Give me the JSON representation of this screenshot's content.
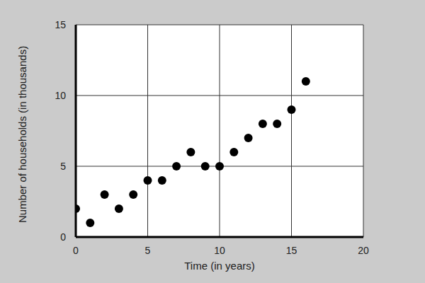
{
  "chart_data": {
    "type": "scatter",
    "xlabel": "Time (in years)",
    "ylabel": "Number of households (in thousands)",
    "x": [
      0,
      1,
      2,
      3,
      4,
      5,
      6,
      7,
      8,
      9,
      10,
      11,
      12,
      13,
      14,
      15,
      16
    ],
    "values": [
      2,
      1,
      3,
      2,
      3,
      4,
      4,
      5,
      6,
      5,
      5,
      6,
      7,
      8,
      8,
      9,
      11
    ],
    "xlim": [
      0,
      20
    ],
    "ylim": [
      0,
      15
    ],
    "xticks": [
      0,
      5,
      10,
      15,
      20
    ],
    "yticks": [
      0,
      5,
      10,
      15
    ],
    "grid": true,
    "color": "#000000",
    "marker": "circle"
  }
}
